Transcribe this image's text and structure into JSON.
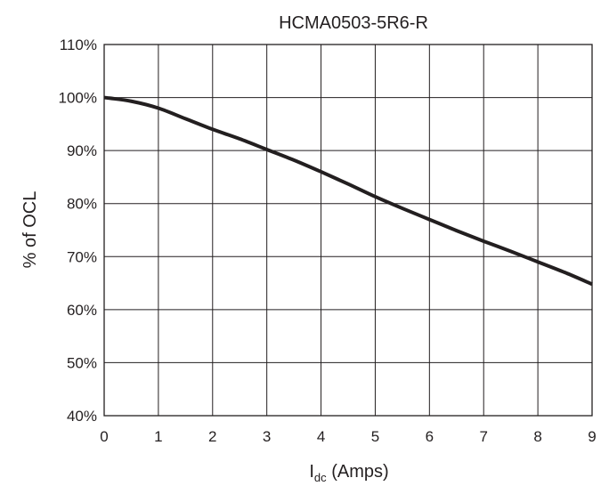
{
  "chart_data": {
    "type": "line",
    "title": "HCMA0503-5R6-R",
    "xlabel": {
      "main": "I",
      "subscript": "dc",
      "suffix": " (Amps)"
    },
    "ylabel": "% of OCL",
    "xlim": [
      0,
      9
    ],
    "ylim": [
      40,
      110
    ],
    "x_ticks": [
      0,
      1,
      2,
      3,
      4,
      5,
      6,
      7,
      8,
      9
    ],
    "x_tick_labels": [
      "0",
      "1",
      "2",
      "3",
      "4",
      "5",
      "6",
      "7",
      "8",
      "9"
    ],
    "y_ticks": [
      40,
      50,
      60,
      70,
      80,
      90,
      100,
      110
    ],
    "y_tick_labels": [
      "40%",
      "50%",
      "60%",
      "70%",
      "80%",
      "90%",
      "100%",
      "110%"
    ],
    "grid": true,
    "series": [
      {
        "x": [
          0,
          0.5,
          1,
          1.5,
          2,
          2.5,
          3,
          3.5,
          4,
          4.5,
          5,
          5.5,
          6,
          6.5,
          7,
          7.5,
          8,
          8.5,
          9
        ],
        "y": [
          100,
          99.3,
          98,
          96,
          94,
          92.2,
          90.2,
          88.2,
          86,
          83.7,
          81.3,
          79.1,
          77,
          74.9,
          72.9,
          71,
          69,
          67,
          64.8
        ]
      }
    ]
  }
}
